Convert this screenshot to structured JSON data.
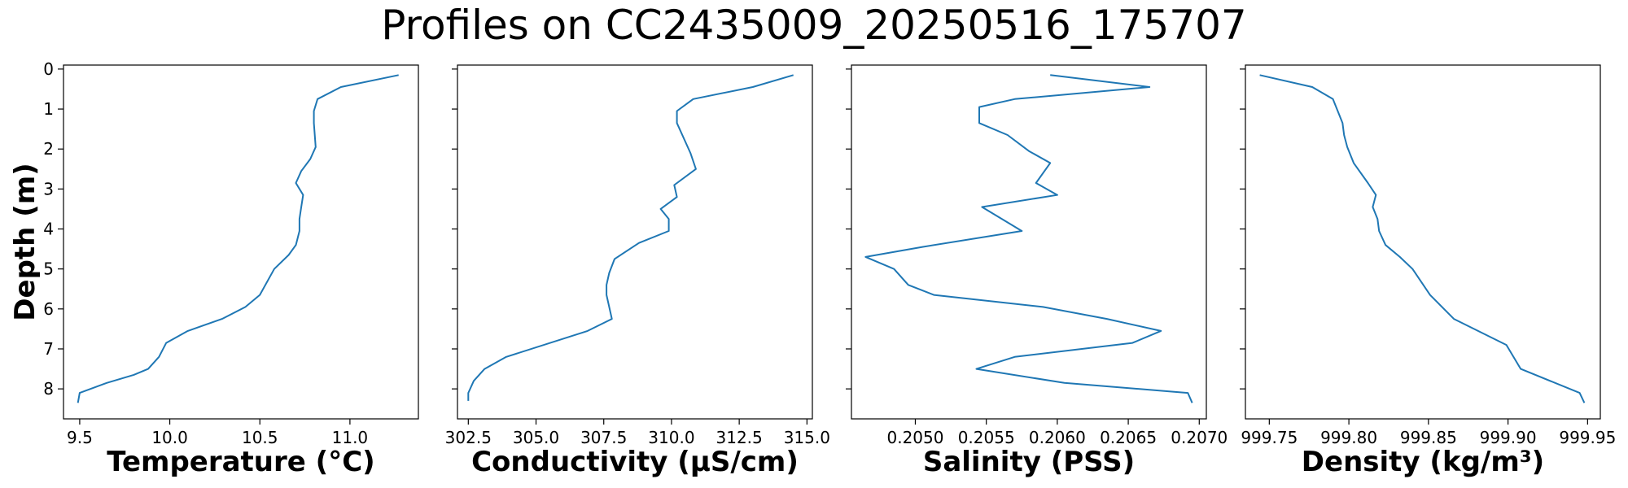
{
  "suptitle": "Profiles on CC2435009_20250516_175707",
  "ylabel": "Depth (m)",
  "y_ticks": [
    0,
    1,
    2,
    3,
    4,
    5,
    6,
    7,
    8
  ],
  "y_axis_inverted": true,
  "ylim": [
    8.75,
    -0.1
  ],
  "shared_y": true,
  "chart_data": [
    {
      "type": "line",
      "xlabel": "Temperature (°C)",
      "xlim": [
        9.41,
        11.38
      ],
      "x_ticks": [
        9.5,
        10.0,
        10.5,
        11.0
      ],
      "x_tick_labels": [
        "9.5",
        "10.0",
        "10.5",
        "11.0"
      ],
      "series": [
        {
          "color": "#1f77b4",
          "x": [
            11.27,
            10.95,
            10.82,
            10.8,
            10.8,
            10.81,
            10.78,
            10.73,
            10.7,
            10.74,
            10.73,
            10.72,
            10.72,
            10.7,
            10.66,
            10.58,
            10.5,
            10.42,
            10.29,
            10.1,
            9.98,
            9.94,
            9.88,
            9.8,
            9.65,
            9.5,
            9.49
          ],
          "y": [
            0.15,
            0.45,
            0.75,
            1.05,
            1.35,
            1.95,
            2.25,
            2.55,
            2.85,
            3.15,
            3.45,
            3.75,
            4.05,
            4.4,
            4.65,
            5.0,
            5.65,
            5.95,
            6.25,
            6.55,
            6.85,
            7.2,
            7.5,
            7.65,
            7.85,
            8.1,
            8.35
          ]
        }
      ]
    },
    {
      "type": "line",
      "xlabel": "Conductivity (µS/cm)",
      "xlim": [
        302.1,
        315.2
      ],
      "x_ticks": [
        302.5,
        305.0,
        307.5,
        310.0,
        312.5,
        315.0
      ],
      "x_tick_labels": [
        "302.5",
        "305.0",
        "307.5",
        "310.0",
        "312.5",
        "315.0"
      ],
      "series": [
        {
          "color": "#1f77b4",
          "x": [
            314.5,
            313.0,
            310.8,
            310.2,
            310.2,
            310.7,
            310.9,
            310.1,
            310.2,
            309.6,
            309.9,
            309.9,
            308.8,
            307.9,
            307.7,
            307.6,
            307.6,
            307.8,
            306.9,
            303.9,
            303.1,
            302.7,
            302.5,
            302.5
          ],
          "y": [
            0.15,
            0.45,
            0.75,
            1.05,
            1.35,
            2.1,
            2.5,
            2.9,
            3.2,
            3.5,
            3.75,
            4.05,
            4.35,
            4.75,
            5.1,
            5.4,
            5.65,
            6.25,
            6.55,
            7.2,
            7.5,
            7.8,
            8.1,
            8.3
          ]
        }
      ]
    },
    {
      "type": "line",
      "xlabel": "Salinity (PSS)",
      "xlim": [
        0.20455,
        0.20705
      ],
      "x_ticks": [
        0.205,
        0.2055,
        0.206,
        0.2065,
        0.207
      ],
      "x_tick_labels": [
        "0.2050",
        "0.2055",
        "0.2060",
        "0.2065",
        "0.2070"
      ],
      "series": [
        {
          "color": "#1f77b4",
          "x": [
            0.20595,
            0.20665,
            0.2057,
            0.20545,
            0.20545,
            0.20565,
            0.2058,
            0.20595,
            0.20585,
            0.206,
            0.20547,
            0.20575,
            0.20505,
            0.20465,
            0.20485,
            0.20495,
            0.20513,
            0.2059,
            0.20635,
            0.20673,
            0.20653,
            0.2057,
            0.20543,
            0.20605,
            0.20692,
            0.20695
          ],
          "y": [
            0.15,
            0.45,
            0.75,
            0.95,
            1.35,
            1.65,
            2.05,
            2.35,
            2.85,
            3.15,
            3.45,
            4.05,
            4.45,
            4.7,
            5.0,
            5.4,
            5.65,
            5.95,
            6.25,
            6.55,
            6.85,
            7.2,
            7.5,
            7.85,
            8.1,
            8.35
          ]
        }
      ]
    },
    {
      "type": "line",
      "xlabel": "Density (kg/m³)",
      "xlim": [
        999.735,
        999.958
      ],
      "x_ticks": [
        999.75,
        999.8,
        999.85,
        999.9,
        999.95
      ],
      "x_tick_labels": [
        "999.75",
        "999.80",
        "999.85",
        "999.90",
        "999.95"
      ],
      "series": [
        {
          "color": "#1f77b4",
          "x": [
            999.744,
            999.777,
            999.79,
            999.793,
            999.796,
            999.797,
            999.799,
            999.803,
            999.812,
            999.817,
            999.815,
            999.818,
            999.819,
            999.823,
            999.832,
            999.84,
            999.851,
            999.866,
            999.899,
            999.908,
            999.945,
            999.948
          ],
          "y": [
            0.15,
            0.45,
            0.75,
            1.05,
            1.35,
            1.65,
            1.95,
            2.35,
            2.85,
            3.15,
            3.45,
            3.75,
            4.05,
            4.4,
            4.7,
            5.0,
            5.65,
            6.25,
            6.9,
            7.5,
            8.1,
            8.35
          ]
        }
      ]
    }
  ]
}
